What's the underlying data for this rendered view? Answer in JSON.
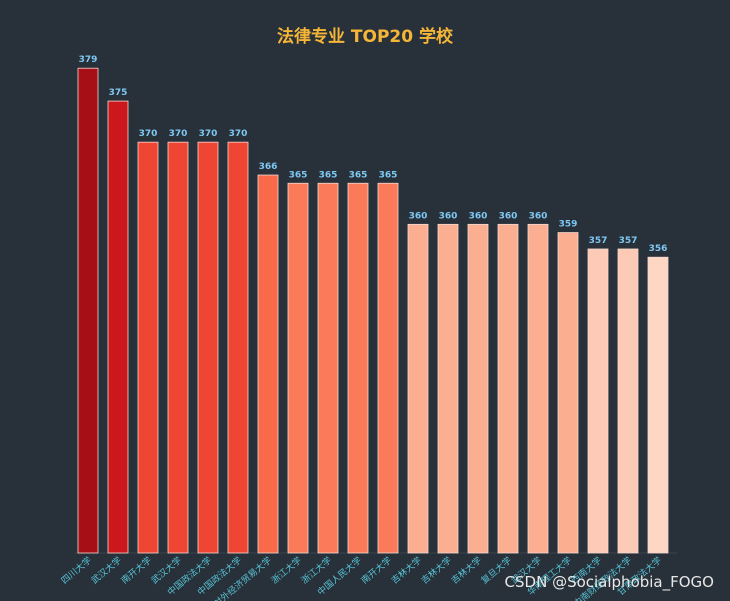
{
  "chart_data": {
    "type": "bar",
    "title": "法律专业 TOP20 学校",
    "xlabel": "",
    "ylabel": "",
    "categories": [
      "四川大学",
      "武汉大学",
      "南开大学",
      "武汉大学",
      "中国政法大学",
      "中国政法大学",
      "对外经济贸易大学",
      "浙江大学",
      "浙江大学",
      "中国人民大学",
      "南开大学",
      "吉林大学",
      "吉林大学",
      "吉林大学",
      "复旦大学",
      "武汉大学",
      "华南理工大学",
      "西南大学",
      "中南财经政法大学",
      "甘肃政法大学"
    ],
    "values": [
      379,
      375,
      370,
      370,
      370,
      370,
      366,
      365,
      365,
      365,
      365,
      360,
      360,
      360,
      360,
      360,
      359,
      357,
      357,
      356
    ],
    "ylim": [
      320,
      380
    ],
    "colors": [
      "#a50f15",
      "#cb181d",
      "#ef4533",
      "#ef4533",
      "#ef4533",
      "#ef4533",
      "#f96a4a",
      "#fb7a5a",
      "#fb7a5a",
      "#fb7a5a",
      "#fb7a5a",
      "#fcae91",
      "#fcae91",
      "#fcae91",
      "#fcae91",
      "#fcae91",
      "#fcae91",
      "#fdcab5",
      "#fdcab5",
      "#fdd6c4"
    ],
    "grid": false,
    "legend": "none"
  },
  "watermark": "CSDN @Socialphobia_FOGO"
}
